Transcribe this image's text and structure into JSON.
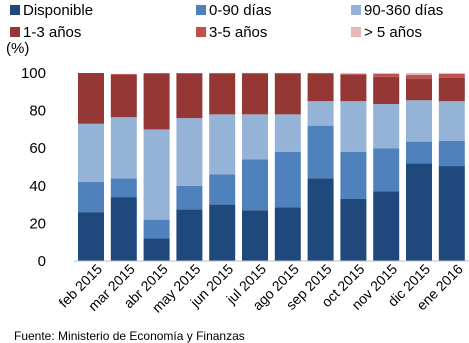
{
  "chart_data": {
    "type": "bar",
    "stacked": true,
    "title": "",
    "xlabel": "",
    "ylabel": "(%)",
    "ylim": [
      0,
      100
    ],
    "yticks": [
      0,
      20,
      40,
      60,
      80,
      100
    ],
    "grid": false,
    "legend_position": "top",
    "categories": [
      "feb 2015",
      "mar 2015",
      "abr 2015",
      "may 2015",
      "jun 2015",
      "jul 2015",
      "ago 2015",
      "sep 2015",
      "oct 2015",
      "nov 2015",
      "dic 2015",
      "ene 2016"
    ],
    "series": [
      {
        "name": "Disponible",
        "color": "#1f497d",
        "values": [
          26,
          34,
          12,
          27.5,
          30,
          27,
          28.5,
          44,
          33,
          37,
          52,
          50.5
        ]
      },
      {
        "name": "0-90 días",
        "color": "#4f81bd",
        "values": [
          16,
          10,
          10,
          12.5,
          16,
          27,
          29.5,
          28,
          25,
          23,
          11.5,
          13.5
        ]
      },
      {
        "name": "90-360 días",
        "color": "#95b3d7",
        "values": [
          31,
          32.5,
          48,
          36,
          32,
          24,
          20,
          13,
          27,
          23.5,
          22,
          21
        ]
      },
      {
        "name": "1-3 años",
        "color": "#953735",
        "values": [
          27,
          22.5,
          29.5,
          23.5,
          21.5,
          21.5,
          21.5,
          14.5,
          14,
          14.5,
          11.5,
          12.5
        ]
      },
      {
        "name": "3-5 años",
        "color": "#c0504d",
        "values": [
          0,
          0.5,
          0.5,
          0.5,
          0.5,
          0.5,
          0.5,
          0.5,
          0.5,
          1.5,
          2,
          2
        ]
      },
      {
        "name": "> 5 años",
        "color": "#e6b9b8",
        "values": [
          0,
          0,
          0,
          0,
          0,
          0,
          0,
          0,
          0.5,
          0.5,
          1,
          0.5
        ]
      }
    ],
    "footnote": "Fuente: Ministerio de Economía y Finanzas"
  }
}
